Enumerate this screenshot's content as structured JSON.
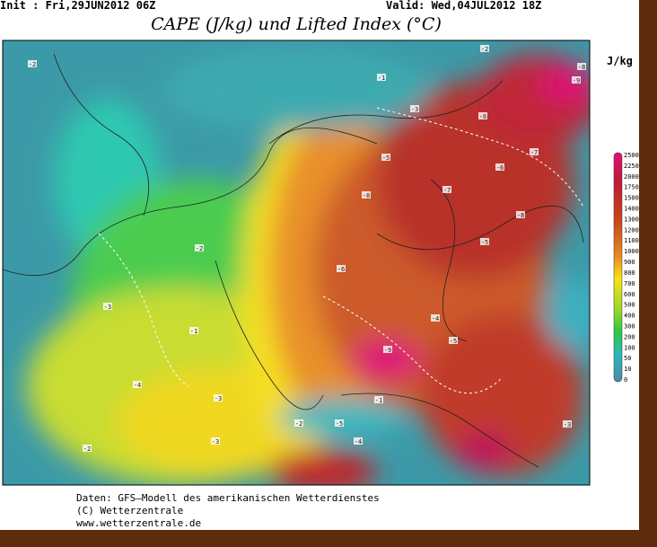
{
  "header": {
    "init": "Init : Fri,29JUN2012 06Z",
    "valid": "Valid: Wed,04JUL2012 18Z",
    "title": "CAPE (J/kg) und Lifted Index (°C)"
  },
  "legend": {
    "unit": "J/kg",
    "labels": [
      "2500",
      "2250",
      "2000",
      "1750",
      "1500",
      "1400",
      "1300",
      "1200",
      "1100",
      "1000",
      "900",
      "800",
      "700",
      "600",
      "500",
      "400",
      "300",
      "200",
      "100",
      "50",
      "10",
      "0"
    ]
  },
  "map": {
    "contour_labels": [
      "-2",
      "-8",
      "-9",
      "-1",
      "-3",
      "-6",
      "-5",
      "-7",
      "-8",
      "-7",
      "-6",
      "-5",
      "-9",
      "-8",
      "-2",
      "-1",
      "-3",
      "-4",
      "-3",
      "-5",
      "-4",
      "-2",
      "-1",
      "-3",
      "-2",
      "-6",
      "-4",
      "-5",
      "-3",
      "-2"
    ]
  },
  "footer": {
    "lines": [
      "Daten: GFS–Modell des amerikanischen Wetterdienstes",
      "(C) Wetterzentrale",
      "www.wetterzentrale.de"
    ]
  }
}
